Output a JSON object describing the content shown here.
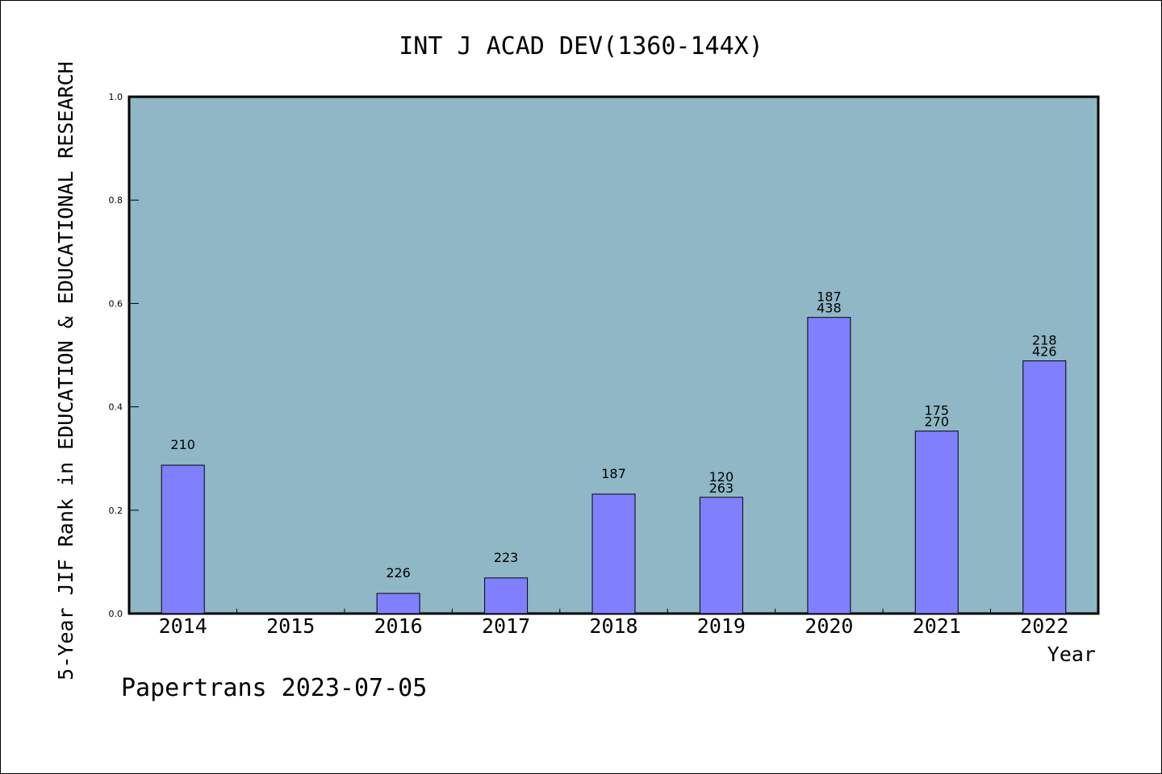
{
  "chart_data": {
    "type": "bar",
    "title": "INT J ACAD DEV(1360-144X)",
    "xlabel": "Year",
    "ylabel": "5-Year JIF Rank in EDUCATION & EDUCATIONAL RESEARCH",
    "ylim": [
      0,
      1.0
    ],
    "yticks": [
      "0.0",
      "0.2",
      "0.4",
      "0.6",
      "0.8",
      "1.0"
    ],
    "categories": [
      "2014",
      "2015",
      "2016",
      "2017",
      "2018",
      "2019",
      "2020",
      "2021",
      "2022"
    ],
    "values": [
      0.287,
      null,
      0.039,
      0.069,
      0.231,
      0.225,
      0.573,
      0.353,
      0.489
    ],
    "labels": [
      [
        "210"
      ],
      [],
      [
        "226"
      ],
      [
        "223"
      ],
      [
        "187"
      ],
      [
        "120",
        "263"
      ],
      [
        "187",
        "438"
      ],
      [
        "175",
        "270"
      ],
      [
        "218",
        "426"
      ]
    ],
    "plot_bg": "#8fb7c5",
    "bar_color": "#8080ff",
    "grid": false
  },
  "footer": "Papertrans 2023-07-05"
}
